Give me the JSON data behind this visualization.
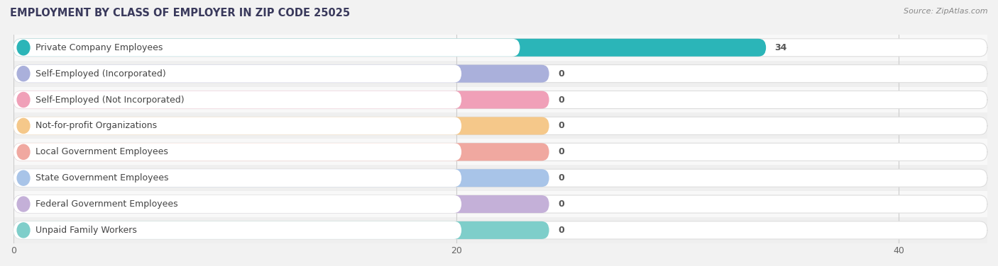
{
  "title": "EMPLOYMENT BY CLASS OF EMPLOYER IN ZIP CODE 25025",
  "source": "Source: ZipAtlas.com",
  "categories": [
    "Private Company Employees",
    "Self-Employed (Incorporated)",
    "Self-Employed (Not Incorporated)",
    "Not-for-profit Organizations",
    "Local Government Employees",
    "State Government Employees",
    "Federal Government Employees",
    "Unpaid Family Workers"
  ],
  "values": [
    34,
    0,
    0,
    0,
    0,
    0,
    0,
    0
  ],
  "bar_colors": [
    "#2bb5b8",
    "#aab0db",
    "#f0a0b8",
    "#f5c88a",
    "#f0a8a0",
    "#a8c4e8",
    "#c4b0d8",
    "#7ececa"
  ],
  "xlim": [
    0,
    44
  ],
  "xticks": [
    0,
    20,
    40
  ],
  "background_color": "#f2f2f2",
  "row_bg_color": "#f8f8f8",
  "row_alt_color": "#efefef",
  "bar_bg_color": "#ffffff",
  "bar_border_color": "#dddddd",
  "title_fontsize": 10.5,
  "source_fontsize": 8,
  "label_fontsize": 9,
  "value_fontsize": 9,
  "tick_fontsize": 9,
  "bar_height": 0.68,
  "label_text_color": "#444444",
  "value_text_color": "#555555",
  "grid_color": "#cccccc"
}
